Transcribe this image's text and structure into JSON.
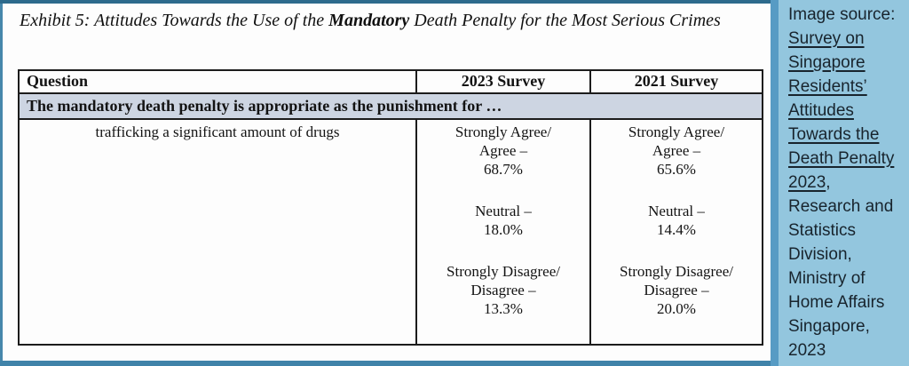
{
  "colors": {
    "backdrop": "#4787ab",
    "top_strip": "#2d6a8c",
    "bottom_strip": "#4083a9",
    "divider_strip": "#579bc4",
    "document_bg": "#fdfdfd",
    "table_border": "#1c1c1c",
    "section_row_bg": "#cdd5e2",
    "sidebar_bg": "#93c6de",
    "sidebar_text": "#18242d"
  },
  "exhibit": {
    "title_pre": "Exhibit 5: Attitudes Towards the Use of the ",
    "title_bold": "Mandatory",
    "title_post": " Death Penalty for the Most Serious Crimes",
    "table": {
      "col_question": "Question",
      "col_2023": "2023 Survey",
      "col_2021": "2021 Survey",
      "section_header": "The mandatory death penalty is appropriate as the punishment for …",
      "row_label": "trafficking a significant amount of drugs",
      "survey_2023": {
        "agree_l1": "Strongly Agree/",
        "agree_l2": "Agree –",
        "agree_value": "68.7%",
        "neutral_l1": "Neutral –",
        "neutral_value": "18.0%",
        "disagree_l1": "Strongly Disagree/",
        "disagree_l2": "Disagree –",
        "disagree_value": "13.3%"
      },
      "survey_2021": {
        "agree_l1": "Strongly Agree/",
        "agree_l2": "Agree –",
        "agree_value": "65.6%",
        "neutral_l1": "Neutral –",
        "neutral_value": "14.4%",
        "disagree_l1": "Strongly Disagree/",
        "disagree_l2": "Disagree –",
        "disagree_value": "20.0%"
      }
    }
  },
  "sidebar": {
    "prefix": "Image source: ",
    "link_text": "Survey on Singapore Residents’ Attitudes Towards the Death Penalty 2023",
    "suffix": ", Research and Statistics Division, Ministry of Home Affairs Singapore, 2023"
  }
}
